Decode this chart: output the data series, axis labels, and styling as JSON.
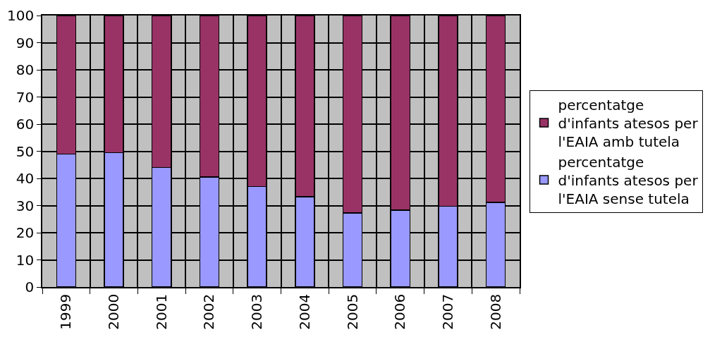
{
  "chart_data": {
    "type": "bar",
    "stacked": true,
    "categories": [
      "1999",
      "2000",
      "2001",
      "2002",
      "2003",
      "2004",
      "2005",
      "2006",
      "2007",
      "2008"
    ],
    "series": [
      {
        "name": "percentatge d'infants atesos per l'EAIA sense tutela",
        "color": "#9999ff",
        "values": [
          49,
          49.5,
          44,
          40.5,
          37,
          33.3,
          27.3,
          28.3,
          29.8,
          31.2
        ]
      },
      {
        "name": "percentatge d'infants atesos per l'EAIA amb tutela",
        "color": "#993366",
        "values": [
          51,
          50.5,
          56,
          59.5,
          63,
          66.7,
          72.7,
          71.7,
          70.2,
          68.8
        ]
      }
    ],
    "ylim": [
      0,
      100
    ],
    "yticks": [
      0,
      10,
      20,
      30,
      40,
      50,
      60,
      70,
      80,
      90,
      100
    ],
    "grid": true,
    "legend": "right"
  }
}
